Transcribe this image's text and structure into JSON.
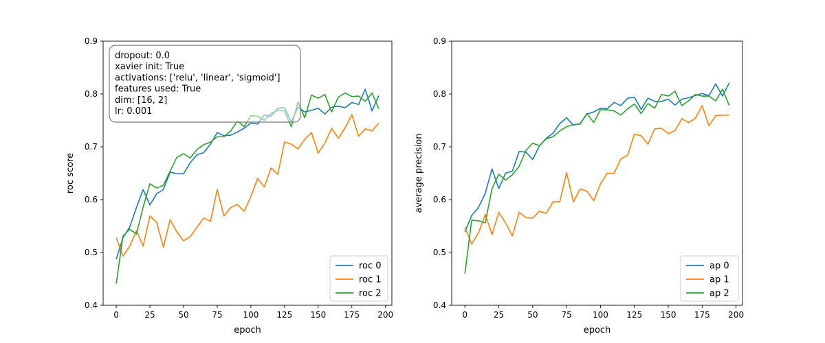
{
  "chart_data": [
    {
      "type": "line",
      "xlabel": "epoch",
      "ylabel": "roc score",
      "xlim": [
        -9.75,
        204.75
      ],
      "ylim": [
        0.4,
        0.9
      ],
      "xticks": [
        0,
        25,
        50,
        75,
        100,
        125,
        150,
        175,
        200
      ],
      "yticks": [
        0.4,
        0.5,
        0.6,
        0.7,
        0.8,
        0.9
      ],
      "grid": false,
      "legend_position": "lower right",
      "colors": [
        "#1f77b4",
        "#ff7f0e",
        "#2ca02c"
      ],
      "annotation": {
        "position": "upper left",
        "lines": [
          "dropout: 0.0",
          "xavier init: True",
          "activations: ['relu', 'linear', 'sigmoid']",
          "features used: True",
          "dim: [16, 2]",
          "lr: 0.001"
        ]
      },
      "x": [
        0,
        5,
        10,
        15,
        20,
        25,
        30,
        35,
        40,
        45,
        50,
        55,
        60,
        65,
        70,
        75,
        80,
        85,
        90,
        95,
        100,
        105,
        110,
        115,
        120,
        125,
        130,
        135,
        140,
        145,
        150,
        155,
        160,
        165,
        170,
        175,
        180,
        185,
        190,
        195
      ],
      "series": [
        {
          "name": "roc 0",
          "values": [
            0.487,
            0.528,
            0.548,
            0.585,
            0.619,
            0.59,
            0.611,
            0.619,
            0.652,
            0.649,
            0.649,
            0.67,
            0.685,
            0.689,
            0.705,
            0.727,
            0.721,
            0.722,
            0.728,
            0.735,
            0.745,
            0.743,
            0.76,
            0.758,
            0.773,
            0.774,
            0.747,
            0.775,
            0.766,
            0.769,
            0.773,
            0.762,
            0.775,
            0.777,
            0.774,
            0.784,
            0.78,
            0.809,
            0.768,
            0.797
          ]
        },
        {
          "name": "roc 1",
          "values": [
            0.528,
            0.493,
            0.512,
            0.541,
            0.512,
            0.569,
            0.557,
            0.51,
            0.562,
            0.539,
            0.522,
            0.53,
            0.548,
            0.565,
            0.559,
            0.619,
            0.569,
            0.585,
            0.591,
            0.578,
            0.606,
            0.64,
            0.624,
            0.66,
            0.648,
            0.709,
            0.705,
            0.696,
            0.714,
            0.727,
            0.688,
            0.707,
            0.735,
            0.716,
            0.736,
            0.761,
            0.72,
            0.734,
            0.73,
            0.745
          ]
        },
        {
          "name": "roc 2",
          "values": [
            0.441,
            0.531,
            0.544,
            0.535,
            0.586,
            0.63,
            0.622,
            0.627,
            0.654,
            0.68,
            0.687,
            0.679,
            0.695,
            0.704,
            0.709,
            0.719,
            0.719,
            0.73,
            0.749,
            0.738,
            0.759,
            0.758,
            0.75,
            0.763,
            0.769,
            0.768,
            0.738,
            0.785,
            0.755,
            0.798,
            0.792,
            0.799,
            0.766,
            0.794,
            0.802,
            0.795,
            0.796,
            0.786,
            0.802,
            0.772
          ]
        }
      ]
    },
    {
      "type": "line",
      "xlabel": "epoch",
      "ylabel": "average precision",
      "xlim": [
        -9.75,
        204.75
      ],
      "ylim": [
        0.4,
        0.9
      ],
      "xticks": [
        0,
        25,
        50,
        75,
        100,
        125,
        150,
        175,
        200
      ],
      "yticks": [
        0.4,
        0.5,
        0.6,
        0.7,
        0.8,
        0.9
      ],
      "grid": false,
      "legend_position": "lower right",
      "colors": [
        "#1f77b4",
        "#ff7f0e",
        "#2ca02c"
      ],
      "x": [
        0,
        5,
        10,
        15,
        20,
        25,
        30,
        35,
        40,
        45,
        50,
        55,
        60,
        65,
        70,
        75,
        80,
        85,
        90,
        95,
        100,
        105,
        110,
        115,
        120,
        125,
        130,
        135,
        140,
        145,
        150,
        155,
        160,
        165,
        170,
        175,
        180,
        185,
        190,
        195
      ],
      "series": [
        {
          "name": "ap 0",
          "values": [
            0.539,
            0.57,
            0.585,
            0.612,
            0.658,
            0.621,
            0.65,
            0.654,
            0.691,
            0.69,
            0.676,
            0.702,
            0.716,
            0.726,
            0.744,
            0.755,
            0.741,
            0.744,
            0.762,
            0.766,
            0.773,
            0.772,
            0.784,
            0.778,
            0.792,
            0.794,
            0.771,
            0.792,
            0.786,
            0.786,
            0.79,
            0.779,
            0.79,
            0.793,
            0.797,
            0.801,
            0.797,
            0.819,
            0.796,
            0.821
          ]
        },
        {
          "name": "ap 1",
          "values": [
            0.547,
            0.516,
            0.537,
            0.572,
            0.534,
            0.576,
            0.556,
            0.531,
            0.576,
            0.566,
            0.565,
            0.578,
            0.574,
            0.596,
            0.596,
            0.651,
            0.596,
            0.62,
            0.616,
            0.598,
            0.63,
            0.65,
            0.65,
            0.677,
            0.684,
            0.724,
            0.721,
            0.705,
            0.734,
            0.735,
            0.725,
            0.731,
            0.753,
            0.746,
            0.754,
            0.778,
            0.74,
            0.759,
            0.76,
            0.76
          ]
        },
        {
          "name": "ap 2",
          "values": [
            0.46,
            0.561,
            0.56,
            0.556,
            0.621,
            0.648,
            0.637,
            0.647,
            0.663,
            0.693,
            0.707,
            0.702,
            0.715,
            0.719,
            0.73,
            0.738,
            0.742,
            0.743,
            0.763,
            0.746,
            0.77,
            0.77,
            0.768,
            0.76,
            0.772,
            0.781,
            0.763,
            0.782,
            0.773,
            0.799,
            0.796,
            0.805,
            0.778,
            0.787,
            0.799,
            0.796,
            0.796,
            0.787,
            0.809,
            0.778
          ]
        }
      ]
    }
  ]
}
